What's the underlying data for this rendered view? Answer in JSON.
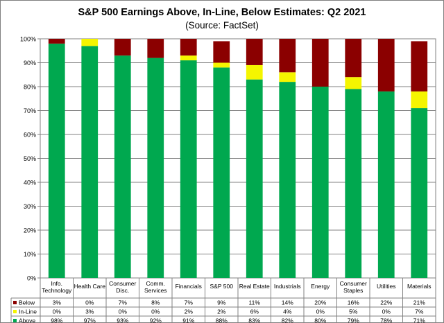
{
  "chart_data": {
    "type": "bar",
    "stacked": true,
    "title": "S&P 500 Earnings Above, In-Line, Below Estimates: Q2 2021",
    "subtitle": "(Source: FactSet)",
    "categories": [
      [
        "Info.",
        "Technology"
      ],
      [
        "Health Care"
      ],
      [
        "Consumer",
        "Disc."
      ],
      [
        "Comm.",
        "Services"
      ],
      [
        "Financials"
      ],
      [
        "S&P 500"
      ],
      [
        "Real Estate"
      ],
      [
        "Industrials"
      ],
      [
        "Energy"
      ],
      [
        "Consumer",
        "Staples"
      ],
      [
        "Utilities"
      ],
      [
        "Materials"
      ]
    ],
    "series": [
      {
        "name": "Above",
        "color": "#00a84f",
        "values": [
          98,
          97,
          93,
          92,
          91,
          88,
          83,
          82,
          80,
          79,
          78,
          71
        ]
      },
      {
        "name": "In-Line",
        "color": "#f5f500",
        "values": [
          0,
          3,
          0,
          0,
          2,
          2,
          6,
          4,
          0,
          5,
          0,
          7
        ]
      },
      {
        "name": "Below",
        "color": "#8b0000",
        "values": [
          3,
          0,
          7,
          8,
          7,
          9,
          11,
          14,
          20,
          16,
          22,
          21
        ]
      }
    ],
    "table_rows": [
      "Below",
      "In-Line",
      "Above"
    ],
    "ylim": [
      0,
      100
    ],
    "yticks": [
      0,
      10,
      20,
      30,
      40,
      50,
      60,
      70,
      80,
      90,
      100
    ],
    "ytick_suffix": "%",
    "value_suffix": "%",
    "grid": true,
    "legend": "data-table"
  }
}
